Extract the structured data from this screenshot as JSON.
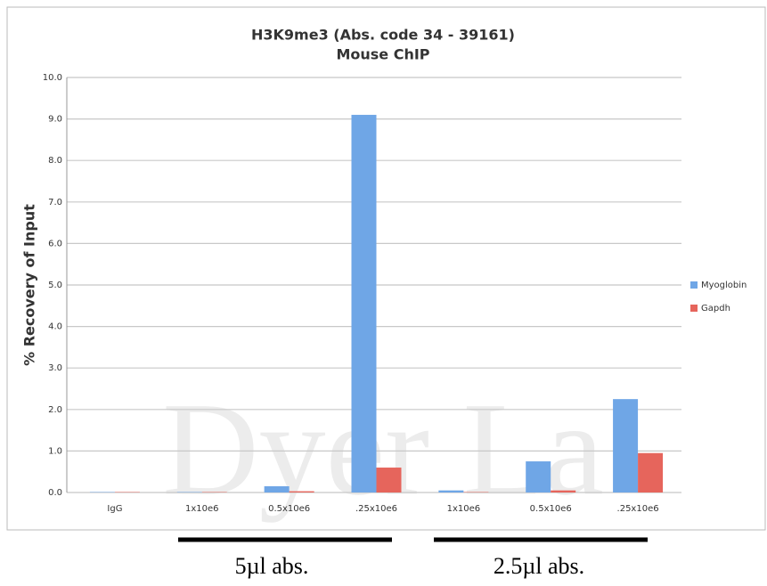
{
  "chart_data": {
    "type": "bar",
    "title": "H3K9me3 (Abs. code 34 - 39161)",
    "subtitle": "Mouse ChIP",
    "y_label": "% Recovery of Input",
    "categories": [
      "IgG",
      "1x10e6",
      "0.5x10e6",
      ".25x10e6",
      "1x10e6",
      "0.5x10e6",
      ".25x10e6"
    ],
    "series": [
      {
        "name": "Myoglobin",
        "color": "#6fa6e6",
        "values": [
          0.01,
          0.01,
          0.15,
          9.1,
          0.05,
          0.75,
          2.25
        ]
      },
      {
        "name": "Gapdh",
        "color": "#e6655c",
        "values": [
          0.01,
          0.01,
          0.03,
          0.6,
          0.01,
          0.05,
          0.95
        ]
      }
    ],
    "ylim": [
      0,
      10
    ],
    "yticks": [
      {
        "value": 0,
        "label": "0.0"
      },
      {
        "value": 1,
        "label": "1.0"
      },
      {
        "value": 2,
        "label": "2.0"
      },
      {
        "value": 3,
        "label": "3.0"
      },
      {
        "value": 4,
        "label": "4.0"
      },
      {
        "value": 5,
        "label": "5.0"
      },
      {
        "value": 6,
        "label": "6.0"
      },
      {
        "value": 7,
        "label": "7.0"
      },
      {
        "value": 8,
        "label": "8.0"
      },
      {
        "value": 9,
        "label": "9.0"
      },
      {
        "value": 10,
        "label": "10.0"
      }
    ],
    "grid": true,
    "legend": "right",
    "annotations": [
      "5µl abs.",
      "2.5µl abs."
    ],
    "watermark": "Dyer La"
  }
}
